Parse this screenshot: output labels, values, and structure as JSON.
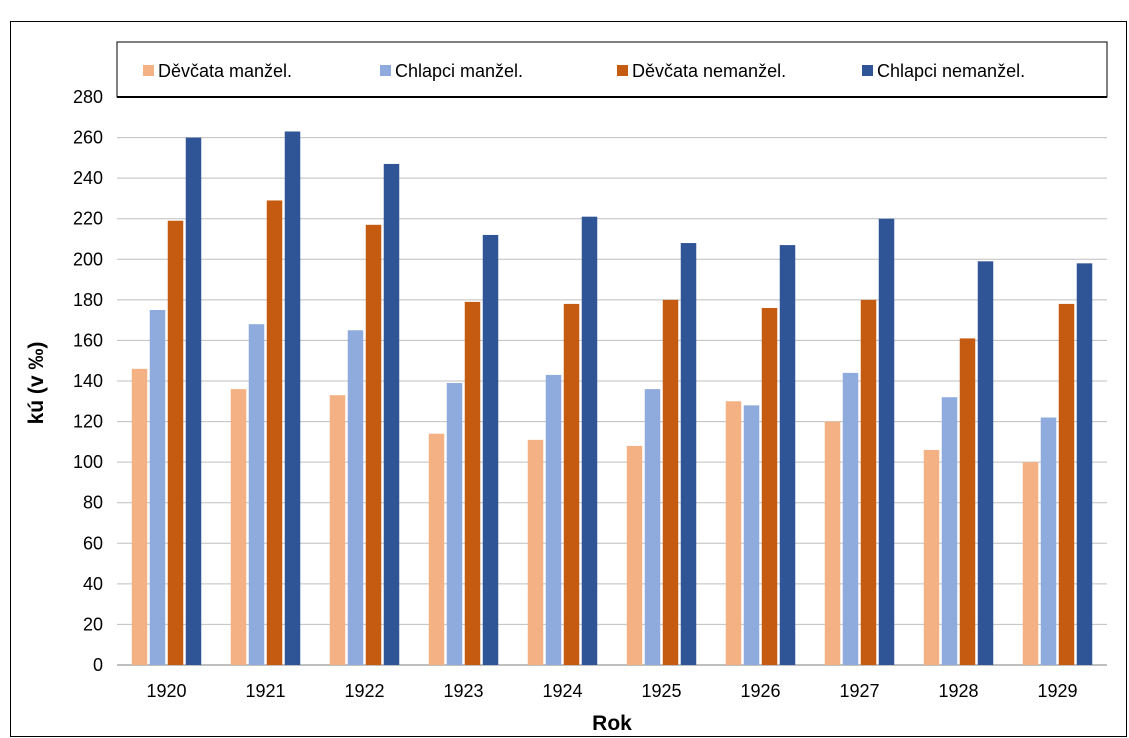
{
  "chart_data": {
    "type": "bar",
    "title": "",
    "xlabel": "Rok",
    "ylabel": "kú (v ‰)",
    "ylim": [
      0,
      280
    ],
    "ytick_step": 20,
    "grid": true,
    "legend_position": "top",
    "categories": [
      "1920",
      "1921",
      "1922",
      "1923",
      "1924",
      "1925",
      "1926",
      "1927",
      "1928",
      "1929"
    ],
    "series": [
      {
        "name": "Děvčata manžel.",
        "color": "#F4B183",
        "values": [
          146,
          136,
          133,
          114,
          111,
          108,
          130,
          120,
          106,
          100
        ]
      },
      {
        "name": "Chlapci manžel.",
        "color": "#8FAADC",
        "values": [
          175,
          168,
          165,
          139,
          143,
          136,
          128,
          144,
          132,
          122
        ]
      },
      {
        "name": "Děvčata nemanžel.",
        "color": "#C55A11",
        "values": [
          219,
          229,
          217,
          179,
          178,
          180,
          176,
          180,
          161,
          178
        ]
      },
      {
        "name": "Chlapci nemanžel.",
        "color": "#2F5597",
        "values": [
          260,
          263,
          247,
          212,
          221,
          208,
          207,
          220,
          199,
          198
        ]
      }
    ]
  }
}
